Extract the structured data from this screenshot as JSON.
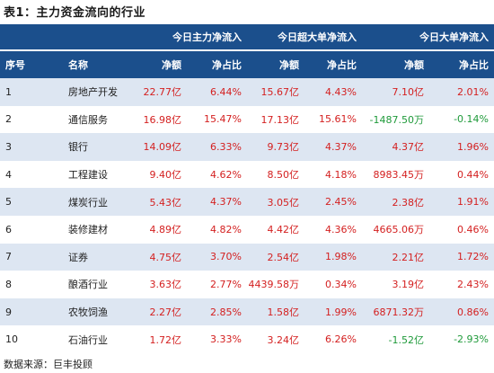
{
  "title": "表1：主力资金流向的行业",
  "header": {
    "group1": "今日主力净流入",
    "group2": "今日超大单净流入",
    "group3": "今日大单净流入",
    "col_index": "序号",
    "col_name": "名称",
    "col_amount": "净额",
    "col_ratio": "净占比"
  },
  "rows": [
    {
      "idx": "1",
      "name": "房地产开发",
      "m_amt": "22.77亿",
      "m_pct": "6.44%",
      "s_amt": "15.67亿",
      "s_pct": "4.43%",
      "b_amt": "7.10亿",
      "b_pct": "2.01%"
    },
    {
      "idx": "2",
      "name": "通信服务",
      "m_amt": "16.98亿",
      "m_pct": "15.47%",
      "s_amt": "17.13亿",
      "s_pct": "15.61%",
      "b_amt": "-1487.50万",
      "b_pct": "-0.14%"
    },
    {
      "idx": "3",
      "name": "银行",
      "m_amt": "14.09亿",
      "m_pct": "6.33%",
      "s_amt": "9.73亿",
      "s_pct": "4.37%",
      "b_amt": "4.37亿",
      "b_pct": "1.96%"
    },
    {
      "idx": "4",
      "name": "工程建设",
      "m_amt": "9.40亿",
      "m_pct": "4.62%",
      "s_amt": "8.50亿",
      "s_pct": "4.18%",
      "b_amt": "8983.45万",
      "b_pct": "0.44%"
    },
    {
      "idx": "5",
      "name": "煤炭行业",
      "m_amt": "5.43亿",
      "m_pct": "4.37%",
      "s_amt": "3.05亿",
      "s_pct": "2.45%",
      "b_amt": "2.38亿",
      "b_pct": "1.91%"
    },
    {
      "idx": "6",
      "name": "装修建材",
      "m_amt": "4.89亿",
      "m_pct": "4.82%",
      "s_amt": "4.42亿",
      "s_pct": "4.36%",
      "b_amt": "4665.06万",
      "b_pct": "0.46%"
    },
    {
      "idx": "7",
      "name": "证券",
      "m_amt": "4.75亿",
      "m_pct": "3.70%",
      "s_amt": "2.54亿",
      "s_pct": "1.98%",
      "b_amt": "2.21亿",
      "b_pct": "1.72%"
    },
    {
      "idx": "8",
      "name": "酿酒行业",
      "m_amt": "3.63亿",
      "m_pct": "2.77%",
      "s_amt": "4439.58万",
      "s_pct": "0.34%",
      "b_amt": "3.19亿",
      "b_pct": "2.43%"
    },
    {
      "idx": "9",
      "name": "农牧饲渔",
      "m_amt": "2.27亿",
      "m_pct": "2.85%",
      "s_amt": "1.58亿",
      "s_pct": "1.99%",
      "b_amt": "6871.32万",
      "b_pct": "0.86%"
    },
    {
      "idx": "10",
      "name": "石油行业",
      "m_amt": "1.72亿",
      "m_pct": "3.33%",
      "s_amt": "3.24亿",
      "s_pct": "6.26%",
      "b_amt": "-1.52亿",
      "b_pct": "-2.93%"
    }
  ],
  "colors": {
    "header_bg": "#1b4f8c",
    "stripe": "#dde6f2",
    "positive": "#d42020",
    "negative": "#1f9a3a"
  },
  "footer": "数据来源：巨丰投顾"
}
